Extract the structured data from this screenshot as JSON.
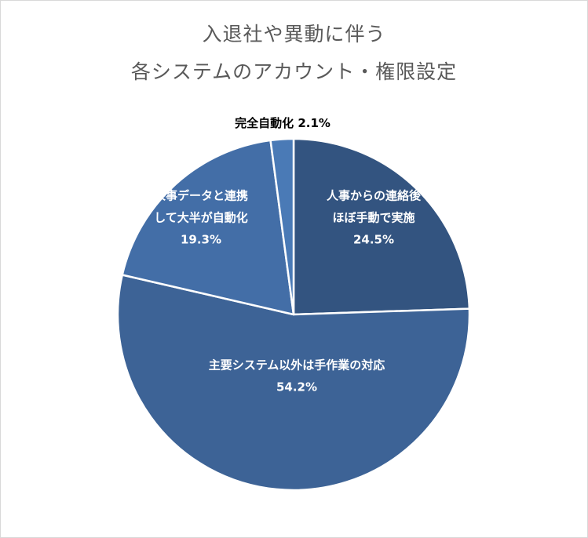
{
  "chart_data": {
    "type": "pie",
    "title_lines": [
      "入退社や異動に伴う",
      "各システムのアカウント・権限設定"
    ],
    "slices": [
      {
        "label_lines": [
          "人事からの連絡後",
          "ほぼ手動で実施"
        ],
        "value": 24.5,
        "value_label": "24.5%",
        "color": "#335480"
      },
      {
        "label_lines": [
          "主要システム以外は手作業の対応"
        ],
        "value": 54.2,
        "value_label": "54.2%",
        "color": "#3d6396"
      },
      {
        "label_lines": [
          "人事データと連携",
          "して大半が自動化"
        ],
        "value": 19.3,
        "value_label": "19.3%",
        "color": "#436ea7"
      },
      {
        "label_lines": [
          "完全自動化"
        ],
        "value": 2.1,
        "value_label": "2.1%",
        "color": "#4a7ab6"
      }
    ],
    "start_angle_deg": 0,
    "direction": "clockwise",
    "legend": "none"
  },
  "colors": {
    "background": "#ffffff",
    "border": "#d9d9d9",
    "title_text": "#595959",
    "slice_separator": "#ffffff",
    "inner_label_text": "#ffffff",
    "outer_label_text": "#000000"
  }
}
